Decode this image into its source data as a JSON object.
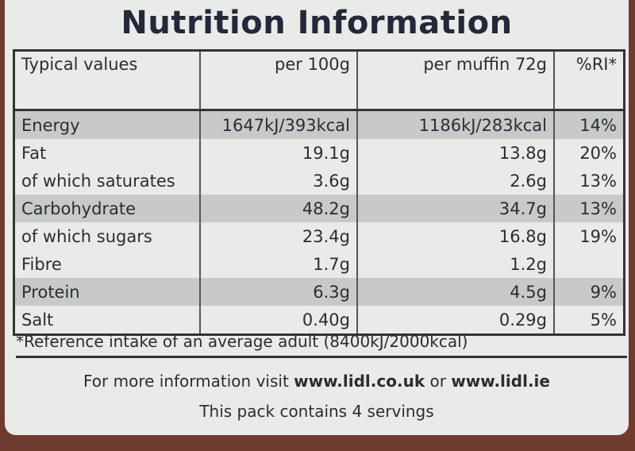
{
  "header": {
    "title": "Nutrition Information"
  },
  "table": {
    "columns": [
      "Typical values",
      "per 100g",
      "per muffin 72g",
      "%RI*"
    ],
    "rows": [
      [
        "Energy",
        "1647kJ/393kcal",
        "1186kJ/283kcal",
        "14%"
      ],
      [
        "Fat",
        "19.1g",
        "13.8g",
        "20%"
      ],
      [
        "of which saturates",
        "3.6g",
        "2.6g",
        "13%"
      ],
      [
        "Carbohydrate",
        "48.2g",
        "34.7g",
        "13%"
      ],
      [
        "of which sugars",
        "23.4g",
        "16.8g",
        "19%"
      ],
      [
        "Fibre",
        "1.7g",
        "1.2g",
        ""
      ],
      [
        "Protein",
        "6.3g",
        "4.5g",
        "9%"
      ],
      [
        "Salt",
        "0.40g",
        "0.29g",
        "5%"
      ]
    ],
    "footnote": "*Reference intake of an average adult (8400kJ/2000kcal)"
  },
  "footer": {
    "line1": [
      "For more information visit",
      "www.lidl.co.uk",
      "or",
      "www.lidl.ie"
    ],
    "line2": "This pack contains 4 servings"
  }
}
